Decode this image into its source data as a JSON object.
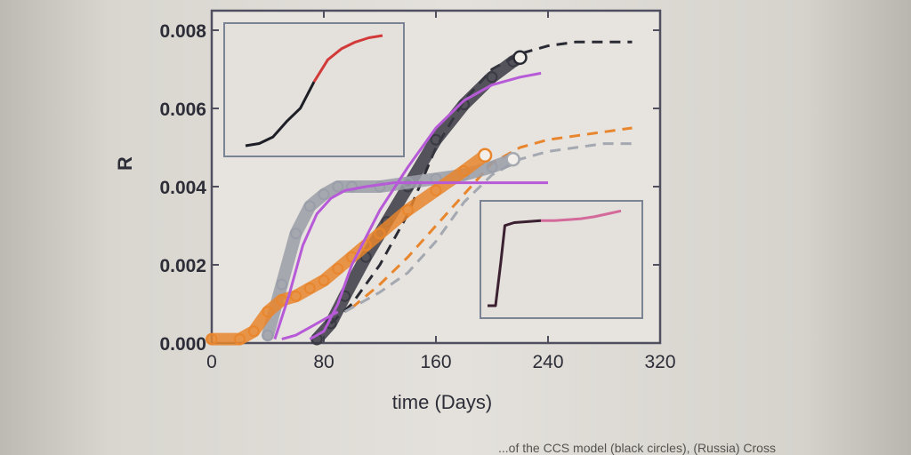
{
  "chart_data": {
    "type": "line",
    "xlabel": "time (Days)",
    "ylabel": "R",
    "xlim": [
      0,
      320
    ],
    "ylim": [
      0,
      0.0085
    ],
    "xticks": [
      0,
      80,
      160,
      240,
      320
    ],
    "xtick_labels": [
      "0",
      "80",
      "160",
      "240",
      "320"
    ],
    "yticks": [
      0,
      0.002,
      0.004,
      0.006,
      0.008
    ],
    "ytick_labels": [
      "0.000",
      "0.002",
      "0.004",
      "0.006",
      "0.008"
    ],
    "grid": false,
    "series": [
      {
        "kind": "markers",
        "color": "#3a3a44",
        "x": [
          75,
          85,
          95,
          110,
          125,
          140,
          160,
          180,
          200,
          215,
          220
        ],
        "y": [
          0.0001,
          0.0005,
          0.0012,
          0.0022,
          0.0031,
          0.004,
          0.0052,
          0.0061,
          0.0068,
          0.0072,
          0.0073
        ]
      },
      {
        "kind": "markers",
        "color": "#9a9ea8",
        "x": [
          40,
          50,
          60,
          70,
          80,
          90,
          100,
          120,
          140,
          160,
          180,
          200,
          215
        ],
        "y": [
          0.0002,
          0.0015,
          0.0028,
          0.0035,
          0.0038,
          0.004,
          0.004,
          0.004,
          0.0041,
          0.0042,
          0.0043,
          0.0045,
          0.0047
        ]
      },
      {
        "kind": "markers",
        "color": "#e8862e",
        "x": [
          0,
          20,
          30,
          40,
          50,
          60,
          70,
          80,
          90,
          100,
          110,
          120,
          140,
          160,
          180,
          195
        ],
        "y": [
          0.0001,
          0.0001,
          0.0003,
          0.0008,
          0.0011,
          0.0012,
          0.0014,
          0.0016,
          0.0019,
          0.0022,
          0.0025,
          0.0028,
          0.0034,
          0.0039,
          0.0044,
          0.0048
        ]
      },
      {
        "kind": "line",
        "color": "#b65ad8",
        "x": [
          70,
          80,
          90,
          100,
          120,
          140,
          160,
          180,
          200,
          220,
          235
        ],
        "y": [
          0.0001,
          0.0003,
          0.001,
          0.002,
          0.0034,
          0.0045,
          0.0055,
          0.0062,
          0.0066,
          0.0068,
          0.0069
        ]
      },
      {
        "kind": "line",
        "color": "#b65ad8",
        "x": [
          45,
          55,
          65,
          75,
          85,
          95,
          110,
          130,
          160,
          200,
          240
        ],
        "y": [
          0.0001,
          0.0012,
          0.0025,
          0.0033,
          0.0037,
          0.0039,
          0.004,
          0.0041,
          0.0041,
          0.0041,
          0.0041
        ]
      },
      {
        "kind": "line",
        "color": "#b65ad8",
        "x": [
          50,
          60,
          70,
          80,
          90
        ],
        "y": [
          0.0001,
          0.0002,
          0.0004,
          0.0006,
          0.0008
        ]
      },
      {
        "kind": "dashed",
        "color": "#2a2a34",
        "x": [
          85,
          100,
          120,
          140,
          160,
          180,
          200,
          220,
          240,
          260,
          280,
          300
        ],
        "y": [
          0.0005,
          0.001,
          0.002,
          0.0033,
          0.005,
          0.0062,
          0.007,
          0.0074,
          0.0076,
          0.0077,
          0.0077,
          0.0077
        ]
      },
      {
        "kind": "dashed",
        "color": "#e8862e",
        "x": [
          100,
          120,
          140,
          160,
          180,
          200,
          220,
          240,
          260,
          280,
          300
        ],
        "y": [
          0.0009,
          0.0015,
          0.0022,
          0.003,
          0.0038,
          0.0046,
          0.005,
          0.0052,
          0.0053,
          0.0054,
          0.0055
        ]
      },
      {
        "kind": "dashed",
        "color": "#a4a8b0",
        "x": [
          95,
          120,
          140,
          160,
          180,
          200,
          220,
          240,
          260,
          280,
          300
        ],
        "y": [
          0.0008,
          0.0013,
          0.0018,
          0.0026,
          0.0036,
          0.0043,
          0.0047,
          0.0049,
          0.005,
          0.0051,
          0.0051
        ]
      }
    ],
    "open_markers": [
      {
        "x": 220,
        "y": 0.0073,
        "color": "#2a2a34"
      },
      {
        "x": 195,
        "y": 0.0048,
        "color": "#e8862e"
      },
      {
        "x": 215,
        "y": 0.0047,
        "color": "#a4a8b0"
      }
    ],
    "insets": [
      {
        "position": "top-left",
        "x": [
          0,
          0.1,
          0.2,
          0.3,
          0.4,
          0.5,
          0.6,
          0.7,
          0.8,
          0.9,
          1.0
        ],
        "y": [
          0.0,
          0.02,
          0.08,
          0.22,
          0.34,
          0.58,
          0.78,
          0.88,
          0.94,
          0.98,
          1.0
        ],
        "colors": [
          "#1e1e26",
          "#d23a3a"
        ]
      },
      {
        "position": "bottom-right",
        "x": [
          0,
          0.06,
          0.1,
          0.13,
          0.2,
          0.3,
          0.4,
          0.5,
          0.6,
          0.7,
          0.8,
          0.9,
          1.0
        ],
        "y": [
          0.0,
          0.0,
          0.45,
          0.82,
          0.85,
          0.86,
          0.87,
          0.87,
          0.88,
          0.89,
          0.91,
          0.94,
          0.97
        ],
        "colors": [
          "#3a2030",
          "#d46a9a"
        ]
      }
    ]
  },
  "caption": "...of the CCS model (black circles), (Russia) Cross"
}
